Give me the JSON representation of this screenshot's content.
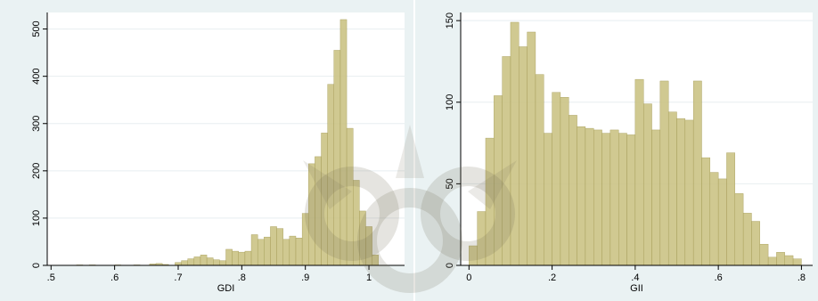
{
  "colors": {
    "panel_bg": "#eaf2f3",
    "plot_bg": "#ffffff",
    "bar_fill": "#c8c07e",
    "bar_stroke": "#a39a55",
    "grid": "#e8eef0",
    "axis": "#000000"
  },
  "watermark": {
    "icon": "university-seal-watermark-icon"
  },
  "chart_data": [
    {
      "type": "bar",
      "name": "GDI histogram",
      "xlabel": "GDI",
      "ylabel": "",
      "xlim": [
        0.494,
        1.056
      ],
      "ylim": [
        0,
        535
      ],
      "bin_width": 0.01,
      "x_ticks": [
        0.5,
        0.6,
        0.7,
        0.8,
        0.9,
        1.0
      ],
      "x_tick_labels": [
        ".5",
        ".6",
        ".7",
        ".8",
        ".9",
        "1"
      ],
      "y_ticks": [
        0,
        100,
        200,
        300,
        400,
        500
      ],
      "y_tick_labels": [
        "0",
        "100",
        "200",
        "300",
        "400",
        "500"
      ],
      "grid": true,
      "bins_left": [
        0.54,
        0.56,
        0.6,
        0.63,
        0.655,
        0.665,
        0.675,
        0.695,
        0.705,
        0.715,
        0.725,
        0.735,
        0.745,
        0.755,
        0.765,
        0.775,
        0.785,
        0.795,
        0.805,
        0.815,
        0.825,
        0.835,
        0.845,
        0.855,
        0.865,
        0.875,
        0.885,
        0.895,
        0.905,
        0.915,
        0.925,
        0.935,
        0.945,
        0.955,
        0.965,
        0.975,
        0.985,
        0.995,
        1.005,
        1.015,
        1.025,
        1.035
      ],
      "values": [
        1,
        1,
        1,
        1,
        3,
        4,
        2,
        6,
        10,
        14,
        18,
        22,
        16,
        12,
        10,
        34,
        30,
        28,
        30,
        65,
        55,
        60,
        82,
        78,
        55,
        62,
        58,
        110,
        215,
        230,
        280,
        383,
        455,
        520,
        290,
        180,
        115,
        82,
        22,
        0,
        0,
        0
      ]
    },
    {
      "type": "bar",
      "name": "GII histogram",
      "xlabel": "GII",
      "ylabel": "",
      "xlim": [
        -0.02,
        0.827
      ],
      "ylim": [
        0,
        155
      ],
      "bin_width": 0.02,
      "x_ticks": [
        0,
        0.2,
        0.4,
        0.6,
        0.8
      ],
      "x_tick_labels": [
        "0",
        ".2",
        ".4",
        ".6",
        ".8"
      ],
      "y_ticks": [
        0,
        50,
        100,
        150
      ],
      "y_tick_labels": [
        "0",
        "50",
        "100",
        "150"
      ],
      "grid": true,
      "bins_left": [
        0.0,
        0.02,
        0.04,
        0.06,
        0.08,
        0.1,
        0.12,
        0.14,
        0.16,
        0.18,
        0.2,
        0.22,
        0.24,
        0.26,
        0.28,
        0.3,
        0.32,
        0.34,
        0.36,
        0.38,
        0.4,
        0.42,
        0.44,
        0.46,
        0.48,
        0.5,
        0.52,
        0.54,
        0.56,
        0.58,
        0.6,
        0.62,
        0.64,
        0.66,
        0.68,
        0.7,
        0.72,
        0.74,
        0.76,
        0.78
      ],
      "values": [
        12,
        33,
        78,
        104,
        128,
        149,
        134,
        143,
        117,
        81,
        106,
        103,
        92,
        85,
        84,
        83,
        81,
        83,
        81,
        80,
        114,
        99,
        83,
        113,
        94,
        90,
        89,
        113,
        66,
        57,
        53,
        69,
        44,
        32,
        27,
        13,
        5,
        8,
        6,
        4
      ]
    }
  ]
}
